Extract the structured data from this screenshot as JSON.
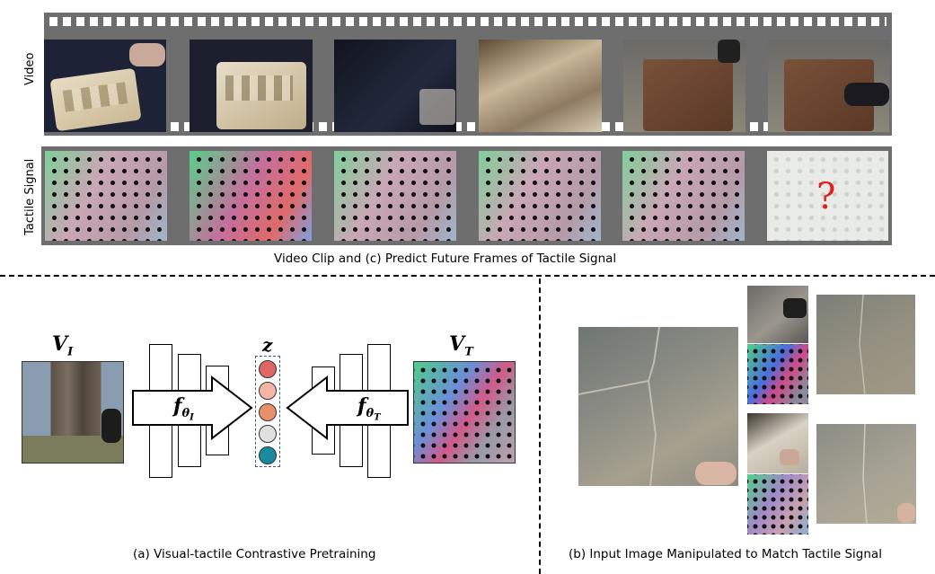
{
  "top": {
    "video_label": "Video",
    "tactile_label": "Tactile Signal",
    "question_mark": "?",
    "caption": "Video Clip and (c) Predict Future Frames of Tactile Signal"
  },
  "panel_a": {
    "image_label_main": "V",
    "image_label_sub": "I",
    "tactile_label_main": "V",
    "tactile_label_sub": "T",
    "encoder_image_main": "f",
    "encoder_image_sub": "θ",
    "encoder_image_subsub": "I",
    "encoder_tactile_main": "f",
    "encoder_tactile_sub": "θ",
    "encoder_tactile_subsub": "T",
    "embedding_label": "z",
    "embedding_colors": [
      "#e06666",
      "#f4b5a4",
      "#e8906a",
      "#e0e0e0",
      "#1a8a9e"
    ],
    "caption": "(a) Visual-tactile Contrastive Pretraining"
  },
  "panel_b": {
    "caption": "(b) Input Image Manipulated to Match Tactile Signal"
  }
}
